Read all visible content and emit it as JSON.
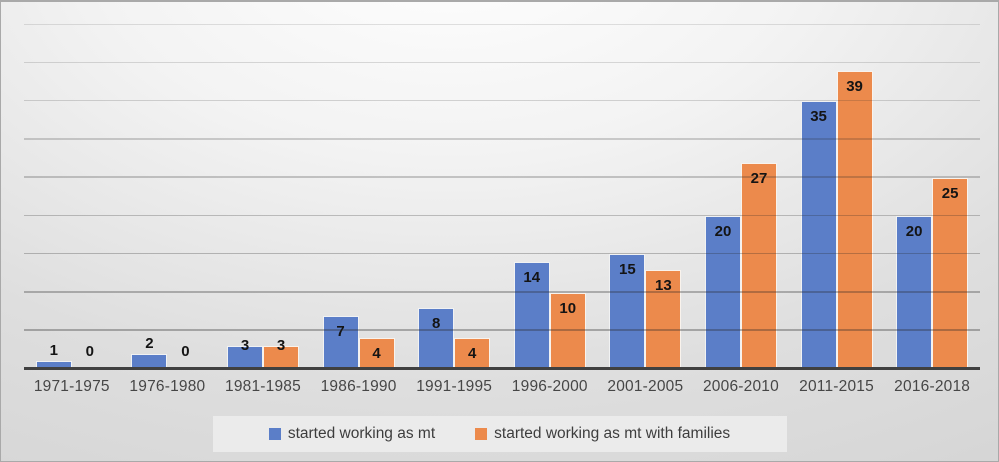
{
  "chart_data": {
    "type": "bar",
    "title": "",
    "categories": [
      "1971-1975",
      "1976-1980",
      "1981-1985",
      "1986-1990",
      "1991-1995",
      "1996-2000",
      "2001-2005",
      "2006-2010",
      "2011-2015",
      "2016-2018"
    ],
    "series": [
      {
        "name": "started working as mt",
        "color": "#5b7ec8",
        "values": [
          1,
          2,
          3,
          7,
          8,
          14,
          15,
          20,
          35,
          20
        ]
      },
      {
        "name": "started working as mt with families",
        "color": "#ec8a4c",
        "values": [
          0,
          0,
          3,
          4,
          4,
          10,
          13,
          27,
          39,
          25
        ]
      }
    ],
    "xlabel": "",
    "ylabel": "",
    "ylim": [
      0,
      45
    ],
    "gridline_step": 5,
    "y_axis_tick_labels_visible": false,
    "grid": "horizontal",
    "data_labels": "inside-end",
    "legend_position": "bottom"
  },
  "colors": {
    "axis_line": "#404040",
    "data_label_text": "#141414",
    "category_label_text": "#464646",
    "legend_background": "#ebebeb",
    "legend_text": "#3d3d3d",
    "bar_outline": "#faf9f6",
    "chart_border": "#a9a9a9"
  }
}
